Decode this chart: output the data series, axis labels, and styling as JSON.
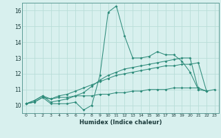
{
  "xlabel": "Humidex (Indice chaleur)",
  "x_values": [
    0,
    1,
    2,
    3,
    4,
    5,
    6,
    7,
    8,
    9,
    10,
    11,
    12,
    13,
    14,
    15,
    16,
    17,
    18,
    19,
    20,
    21,
    22,
    23
  ],
  "line1": [
    10.1,
    10.2,
    10.5,
    10.1,
    10.1,
    10.1,
    10.2,
    9.7,
    10.0,
    11.9,
    15.9,
    16.3,
    14.4,
    13.0,
    13.0,
    13.1,
    13.4,
    13.2,
    13.2,
    12.8,
    12.1,
    11.0,
    10.9,
    null
  ],
  "line2": [
    10.1,
    10.3,
    10.6,
    10.2,
    10.3,
    10.4,
    10.6,
    10.8,
    11.2,
    11.6,
    11.9,
    12.1,
    12.3,
    12.4,
    12.5,
    12.6,
    12.7,
    12.8,
    12.9,
    13.0,
    13.0,
    11.0,
    null,
    null
  ],
  "line3": [
    10.1,
    10.3,
    10.6,
    10.4,
    10.6,
    10.7,
    10.9,
    11.1,
    11.3,
    11.5,
    11.7,
    11.9,
    12.0,
    12.1,
    12.2,
    12.3,
    12.4,
    12.5,
    12.5,
    12.6,
    12.6,
    12.7,
    10.9,
    null
  ],
  "line4": [
    10.1,
    10.2,
    10.5,
    10.4,
    10.5,
    10.5,
    10.6,
    10.6,
    10.6,
    10.7,
    10.7,
    10.8,
    10.8,
    10.9,
    10.9,
    11.0,
    11.0,
    11.0,
    11.1,
    11.1,
    11.1,
    11.1,
    10.9,
    11.0
  ],
  "line_color": "#2d8b7a",
  "bg_color": "#d8f0ee",
  "grid_color": "#b8ddd8",
  "ylim": [
    9.5,
    16.5
  ],
  "yticks": [
    10,
    11,
    12,
    13,
    14,
    15,
    16
  ],
  "xlim": [
    -0.5,
    23.5
  ],
  "xticks": [
    0,
    1,
    2,
    3,
    4,
    5,
    6,
    7,
    8,
    9,
    10,
    11,
    12,
    13,
    14,
    15,
    16,
    17,
    18,
    19,
    20,
    21,
    22,
    23
  ]
}
